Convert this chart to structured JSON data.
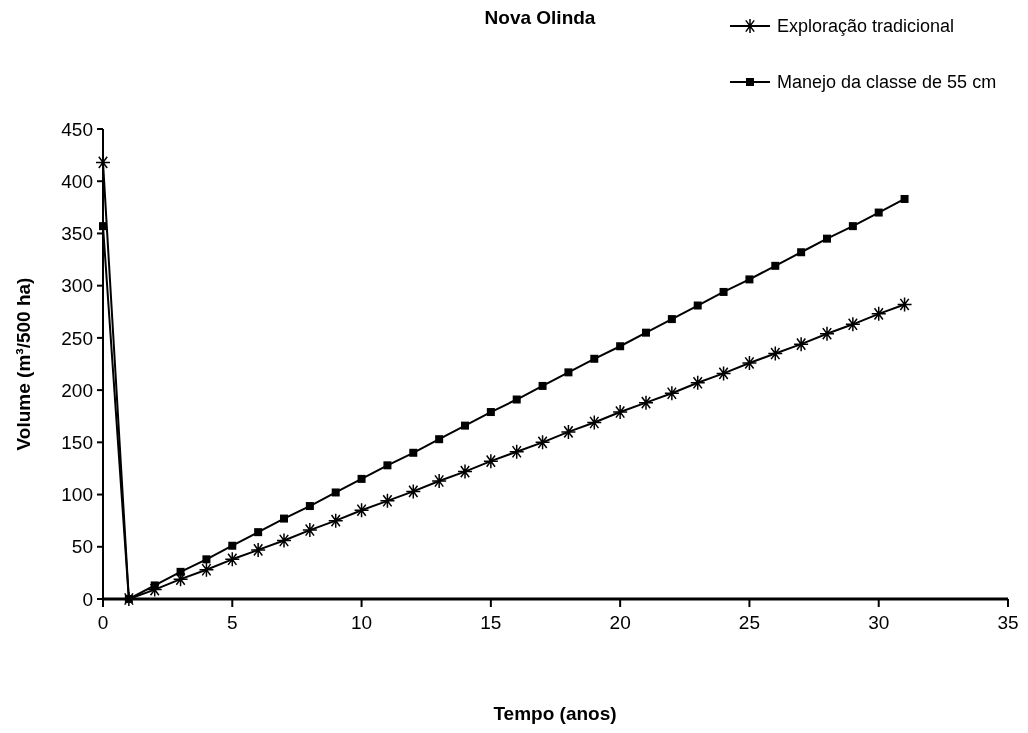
{
  "chart_data": {
    "type": "line",
    "title": "Nova Olinda",
    "xlabel": "Tempo (anos)",
    "ylabel": "Volume (m³/500 ha)",
    "x": [
      0,
      1,
      2,
      3,
      4,
      5,
      6,
      7,
      8,
      9,
      10,
      11,
      12,
      13,
      14,
      15,
      16,
      17,
      18,
      19,
      20,
      21,
      22,
      23,
      24,
      25,
      26,
      27,
      28,
      29,
      30,
      31
    ],
    "series": [
      {
        "name": "Exploração tradicional",
        "color": "#000000",
        "marker": "cross",
        "values": [
          418,
          0,
          9,
          19,
          28,
          38,
          47,
          56,
          66,
          75,
          85,
          94,
          103,
          113,
          122,
          132,
          141,
          150,
          160,
          169,
          179,
          188,
          197,
          207,
          216,
          226,
          235,
          244,
          254,
          263,
          273,
          282
        ]
      },
      {
        "name": "Manejo da classe de 55 cm",
        "color": "#000000",
        "marker": "square",
        "values": [
          357,
          0,
          13,
          26,
          38,
          51,
          64,
          77,
          89,
          102,
          115,
          128,
          140,
          153,
          166,
          179,
          191,
          204,
          217,
          230,
          242,
          255,
          268,
          281,
          294,
          306,
          319,
          332,
          345,
          357,
          370,
          383
        ]
      }
    ],
    "xlim": [
      0,
      35
    ],
    "xticks": [
      0,
      5,
      10,
      15,
      20,
      25,
      30,
      35
    ],
    "ylim": [
      0,
      450
    ],
    "yticks": [
      0,
      50,
      100,
      150,
      200,
      250,
      300,
      350,
      400,
      450
    ],
    "legend": "top right",
    "line_style": "solid"
  }
}
